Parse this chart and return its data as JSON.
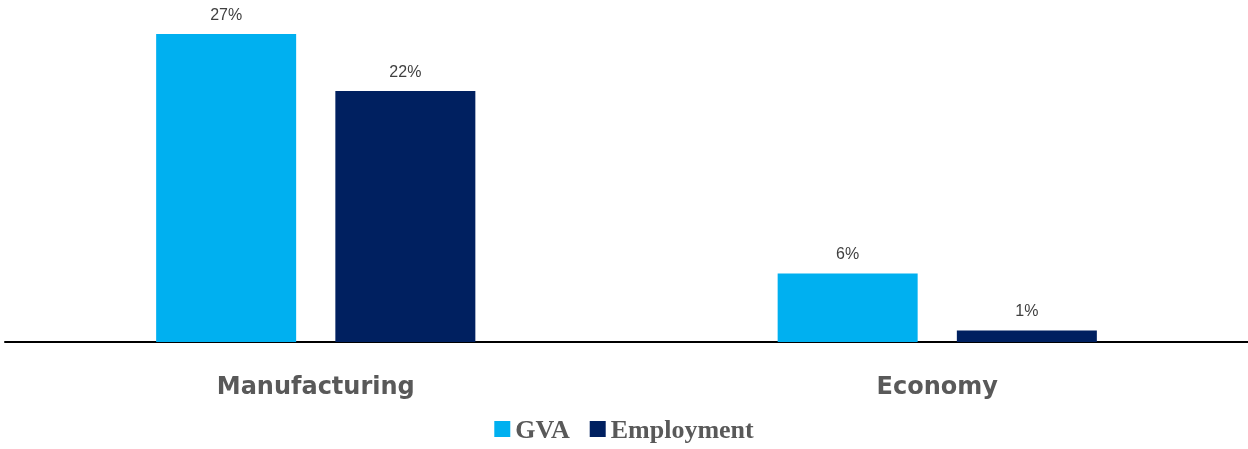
{
  "chart_data": {
    "type": "bar",
    "categories": [
      "Manufacturing",
      "Economy"
    ],
    "series": [
      {
        "name": "GVA",
        "color": "#00b0f0",
        "values": [
          27,
          6
        ],
        "value_labels": [
          "27%",
          "6%"
        ]
      },
      {
        "name": "Employment",
        "color": "#002060",
        "values": [
          22,
          1
        ],
        "value_labels": [
          "22%",
          "1%"
        ]
      }
    ],
    "legend": "bottom",
    "grid": false,
    "tick_labels": "x"
  }
}
